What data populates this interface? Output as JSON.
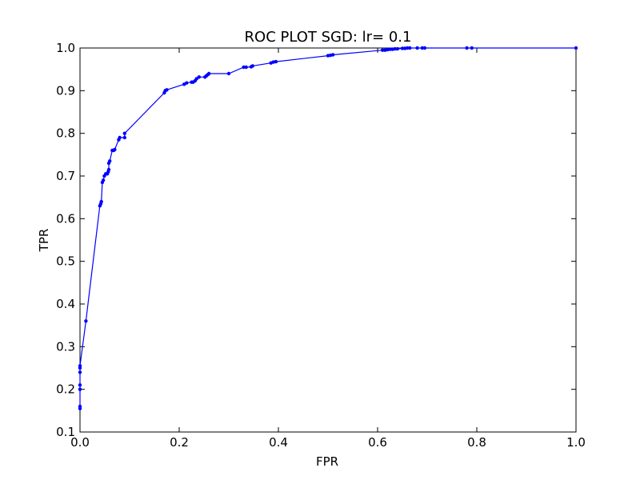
{
  "chart_data": {
    "type": "line",
    "title": "ROC PLOT SGD: lr= 0.1",
    "xlabel": "FPR",
    "ylabel": "TPR",
    "xlim": [
      0.0,
      1.0
    ],
    "ylim": [
      0.1,
      1.0
    ],
    "grid": false,
    "x_ticks": [
      "0.0",
      "0.2",
      "0.4",
      "0.6",
      "0.8",
      "1.0"
    ],
    "y_ticks": [
      "0.1",
      "0.2",
      "0.3",
      "0.4",
      "0.5",
      "0.6",
      "0.7",
      "0.8",
      "0.9",
      "1.0"
    ],
    "series_color": "#0000ff",
    "series": [
      {
        "x": [
          0.0,
          0.0,
          0.0,
          0.0,
          0.0,
          0.0,
          0.0,
          0.012,
          0.04,
          0.042,
          0.043,
          0.045,
          0.047,
          0.049,
          0.052,
          0.055,
          0.057,
          0.058,
          0.058,
          0.06,
          0.065,
          0.068,
          0.07,
          0.078,
          0.08,
          0.09,
          0.09,
          0.17,
          0.172,
          0.175,
          0.21,
          0.215,
          0.225,
          0.228,
          0.232,
          0.235,
          0.24,
          0.252,
          0.255,
          0.258,
          0.26,
          0.3,
          0.33,
          0.335,
          0.345,
          0.348,
          0.385,
          0.39,
          0.395,
          0.5,
          0.505,
          0.51,
          0.61,
          0.615,
          0.62,
          0.625,
          0.63,
          0.635,
          0.64,
          0.65,
          0.655,
          0.66,
          0.665,
          0.68,
          0.69,
          0.695,
          0.78,
          0.79,
          1.0
        ],
        "y": [
          0.155,
          0.16,
          0.2,
          0.21,
          0.24,
          0.25,
          0.255,
          0.36,
          0.63,
          0.635,
          0.64,
          0.685,
          0.69,
          0.7,
          0.705,
          0.705,
          0.71,
          0.715,
          0.73,
          0.735,
          0.76,
          0.76,
          0.762,
          0.785,
          0.79,
          0.79,
          0.8,
          0.895,
          0.9,
          0.902,
          0.915,
          0.918,
          0.92,
          0.92,
          0.923,
          0.928,
          0.932,
          0.932,
          0.935,
          0.938,
          0.94,
          0.94,
          0.955,
          0.955,
          0.956,
          0.958,
          0.965,
          0.967,
          0.968,
          0.982,
          0.983,
          0.984,
          0.995,
          0.995,
          0.996,
          0.997,
          0.997,
          0.998,
          0.998,
          0.999,
          0.999,
          1.0,
          1.0,
          1.0,
          1.0,
          1.0,
          1.0,
          1.0,
          1.0
        ]
      }
    ]
  }
}
